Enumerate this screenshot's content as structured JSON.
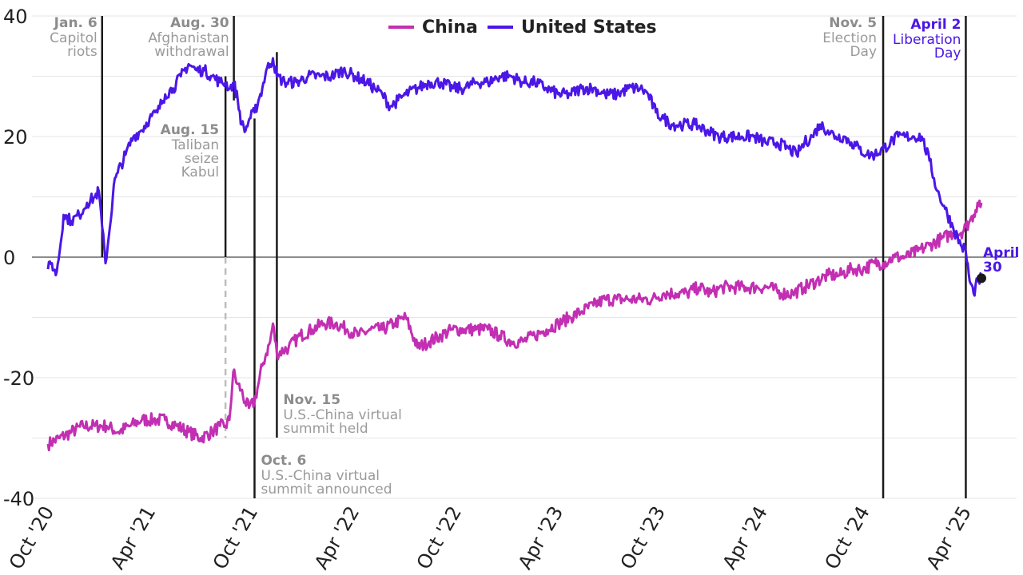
{
  "colors": {
    "china": "#c22fb2",
    "united_states": "#4b17e6",
    "event_line": "#1a1a1a",
    "grid": "#e6e6e6",
    "annotation_gray": "#9a9a9a"
  },
  "chart_data": {
    "type": "line",
    "x_axis": {
      "type": "date",
      "range": [
        "2020-10-01",
        "2025-04-30"
      ],
      "tick_labels": [
        "Oct '20",
        "Apr '21",
        "Oct '21",
        "Apr '22",
        "Oct '22",
        "Apr '23",
        "Oct '23",
        "Apr '24",
        "Oct '24",
        "Apr '25"
      ],
      "tick_dates": [
        "2020-10-01",
        "2021-04-01",
        "2021-10-01",
        "2022-04-01",
        "2022-10-01",
        "2023-04-01",
        "2023-10-01",
        "2024-04-01",
        "2024-10-01",
        "2025-04-01"
      ],
      "label_rotation": "-60deg"
    },
    "y_axis": {
      "range": [
        -40,
        40
      ],
      "ticks": [
        40,
        20,
        0,
        -20,
        -40
      ],
      "tick_labels": [
        "40",
        "20",
        "0",
        "-20",
        "-40"
      ],
      "grid": true
    },
    "legend": {
      "placement": "top-center",
      "entries": [
        "China",
        "United States"
      ]
    },
    "series": [
      {
        "name": "United States",
        "color": "#4b17e6",
        "points": [
          [
            "2020-10-01",
            -2
          ],
          [
            "2020-10-08",
            -1
          ],
          [
            "2020-10-15",
            -3
          ],
          [
            "2020-10-22",
            1
          ],
          [
            "2020-10-29",
            7
          ],
          [
            "2020-11-12",
            6
          ],
          [
            "2020-11-26",
            7
          ],
          [
            "2020-12-10",
            9
          ],
          [
            "2020-12-24",
            10
          ],
          [
            "2020-12-31",
            11
          ],
          [
            "2021-01-06",
            5
          ],
          [
            "2021-01-12",
            -1
          ],
          [
            "2021-01-20",
            5
          ],
          [
            "2021-01-27",
            12
          ],
          [
            "2021-02-03",
            14
          ],
          [
            "2021-02-17",
            17
          ],
          [
            "2021-03-03",
            20
          ],
          [
            "2021-03-17",
            21
          ],
          [
            "2021-04-01",
            23
          ],
          [
            "2021-04-15",
            24
          ],
          [
            "2021-04-29",
            27
          ],
          [
            "2021-05-13",
            28
          ],
          [
            "2021-05-27",
            30
          ],
          [
            "2021-06-10",
            32
          ],
          [
            "2021-06-24",
            31
          ],
          [
            "2021-07-08",
            31
          ],
          [
            "2021-07-22",
            30
          ],
          [
            "2021-08-05",
            29
          ],
          [
            "2021-08-15",
            29
          ],
          [
            "2021-08-23",
            28
          ],
          [
            "2021-08-30",
            29
          ],
          [
            "2021-09-06",
            26
          ],
          [
            "2021-09-13",
            22
          ],
          [
            "2021-09-20",
            21
          ],
          [
            "2021-09-27",
            23
          ],
          [
            "2021-10-06",
            24
          ],
          [
            "2021-10-13",
            26
          ],
          [
            "2021-10-20",
            28
          ],
          [
            "2021-10-27",
            31
          ],
          [
            "2021-11-03",
            32
          ],
          [
            "2021-11-08",
            33
          ],
          [
            "2021-11-15",
            30
          ],
          [
            "2021-11-29",
            29
          ],
          [
            "2021-12-20",
            29
          ],
          [
            "2022-01-10",
            30
          ],
          [
            "2022-01-31",
            30
          ],
          [
            "2022-02-21",
            30
          ],
          [
            "2022-03-14",
            31
          ],
          [
            "2022-04-04",
            30
          ],
          [
            "2022-04-25",
            29
          ],
          [
            "2022-05-09",
            28
          ],
          [
            "2022-05-23",
            27
          ],
          [
            "2022-06-06",
            25
          ],
          [
            "2022-06-20",
            26
          ],
          [
            "2022-07-04",
            27
          ],
          [
            "2022-07-25",
            28
          ],
          [
            "2022-08-15",
            29
          ],
          [
            "2022-09-05",
            29
          ],
          [
            "2022-09-26",
            28
          ],
          [
            "2022-10-17",
            28
          ],
          [
            "2022-11-07",
            29
          ],
          [
            "2022-11-28",
            29
          ],
          [
            "2022-12-19",
            30
          ],
          [
            "2023-01-09",
            30
          ],
          [
            "2023-01-30",
            29
          ],
          [
            "2023-02-20",
            29
          ],
          [
            "2023-03-13",
            28
          ],
          [
            "2023-04-03",
            27
          ],
          [
            "2023-04-24",
            27
          ],
          [
            "2023-05-15",
            28
          ],
          [
            "2023-06-05",
            28
          ],
          [
            "2023-06-26",
            27
          ],
          [
            "2023-07-17",
            27
          ],
          [
            "2023-08-07",
            28
          ],
          [
            "2023-08-28",
            28
          ],
          [
            "2023-09-11",
            27
          ],
          [
            "2023-09-25",
            24
          ],
          [
            "2023-10-09",
            23
          ],
          [
            "2023-10-23",
            22
          ],
          [
            "2023-11-13",
            22
          ],
          [
            "2023-12-04",
            22
          ],
          [
            "2023-12-25",
            21
          ],
          [
            "2024-01-15",
            20
          ],
          [
            "2024-02-05",
            20
          ],
          [
            "2024-02-26",
            20
          ],
          [
            "2024-03-18",
            20
          ],
          [
            "2024-04-08",
            19
          ],
          [
            "2024-04-29",
            19
          ],
          [
            "2024-05-20",
            18
          ],
          [
            "2024-06-03",
            17
          ],
          [
            "2024-06-17",
            19
          ],
          [
            "2024-07-01",
            20
          ],
          [
            "2024-07-15",
            22
          ],
          [
            "2024-07-29",
            21
          ],
          [
            "2024-08-12",
            20
          ],
          [
            "2024-08-26",
            20
          ],
          [
            "2024-09-09",
            19
          ],
          [
            "2024-09-23",
            18
          ],
          [
            "2024-10-07",
            17
          ],
          [
            "2024-10-21",
            17
          ],
          [
            "2024-11-05",
            18
          ],
          [
            "2024-11-18",
            19
          ],
          [
            "2024-12-02",
            20
          ],
          [
            "2024-12-16",
            20
          ],
          [
            "2024-12-30",
            20
          ],
          [
            "2025-01-13",
            20
          ],
          [
            "2025-01-27",
            16
          ],
          [
            "2025-02-10",
            11
          ],
          [
            "2025-02-24",
            8
          ],
          [
            "2025-03-10",
            5
          ],
          [
            "2025-03-24",
            2
          ],
          [
            "2025-04-02",
            1
          ],
          [
            "2025-04-09",
            -4
          ],
          [
            "2025-04-16",
            -6
          ],
          [
            "2025-04-23",
            -4
          ],
          [
            "2025-04-30",
            -3.5
          ]
        ]
      },
      {
        "name": "China",
        "color": "#c22fb2",
        "points": [
          [
            "2020-10-01",
            -31
          ],
          [
            "2020-10-22",
            -30
          ],
          [
            "2020-11-12",
            -29
          ],
          [
            "2020-12-03",
            -28
          ],
          [
            "2020-12-24",
            -28
          ],
          [
            "2021-01-14",
            -28
          ],
          [
            "2021-02-04",
            -29
          ],
          [
            "2021-02-25",
            -28
          ],
          [
            "2021-03-18",
            -27
          ],
          [
            "2021-04-08",
            -27
          ],
          [
            "2021-04-29",
            -27
          ],
          [
            "2021-05-20",
            -28
          ],
          [
            "2021-06-10",
            -29
          ],
          [
            "2021-07-01",
            -30
          ],
          [
            "2021-07-22",
            -29
          ],
          [
            "2021-08-05",
            -28
          ],
          [
            "2021-08-15",
            -28
          ],
          [
            "2021-08-22",
            -27
          ],
          [
            "2021-08-29",
            -19
          ],
          [
            "2021-09-05",
            -21
          ],
          [
            "2021-09-12",
            -22
          ],
          [
            "2021-09-19",
            -24
          ],
          [
            "2021-09-26",
            -25
          ],
          [
            "2021-10-06",
            -24
          ],
          [
            "2021-10-13",
            -21
          ],
          [
            "2021-10-20",
            -18
          ],
          [
            "2021-10-27",
            -16
          ],
          [
            "2021-11-03",
            -14
          ],
          [
            "2021-11-08",
            -11
          ],
          [
            "2021-11-15",
            -16
          ],
          [
            "2021-12-06",
            -15
          ],
          [
            "2021-12-27",
            -13
          ],
          [
            "2022-01-17",
            -12
          ],
          [
            "2022-02-07",
            -11
          ],
          [
            "2022-02-28",
            -11
          ],
          [
            "2022-03-21",
            -12
          ],
          [
            "2022-04-11",
            -13
          ],
          [
            "2022-05-02",
            -12
          ],
          [
            "2022-05-23",
            -12
          ],
          [
            "2022-06-13",
            -11
          ],
          [
            "2022-07-04",
            -10
          ],
          [
            "2022-07-25",
            -15
          ],
          [
            "2022-08-15",
            -14
          ],
          [
            "2022-09-05",
            -13
          ],
          [
            "2022-09-26",
            -12
          ],
          [
            "2022-10-17",
            -12
          ],
          [
            "2022-11-07",
            -12
          ],
          [
            "2022-11-28",
            -12
          ],
          [
            "2022-12-19",
            -13
          ],
          [
            "2023-01-09",
            -14
          ],
          [
            "2023-01-30",
            -14
          ],
          [
            "2023-02-20",
            -13
          ],
          [
            "2023-03-13",
            -12
          ],
          [
            "2023-04-03",
            -11
          ],
          [
            "2023-04-24",
            -10
          ],
          [
            "2023-05-15",
            -9
          ],
          [
            "2023-06-05",
            -8
          ],
          [
            "2023-06-26",
            -7
          ],
          [
            "2023-07-17",
            -7
          ],
          [
            "2023-08-07",
            -7
          ],
          [
            "2023-08-28",
            -7
          ],
          [
            "2023-09-18",
            -7
          ],
          [
            "2023-10-09",
            -6
          ],
          [
            "2023-10-30",
            -6
          ],
          [
            "2023-11-20",
            -6
          ],
          [
            "2023-12-11",
            -5
          ],
          [
            "2024-01-01",
            -6
          ],
          [
            "2024-01-22",
            -5
          ],
          [
            "2024-02-12",
            -5
          ],
          [
            "2024-03-04",
            -5
          ],
          [
            "2024-03-25",
            -5
          ],
          [
            "2024-04-15",
            -5
          ],
          [
            "2024-05-06",
            -6
          ],
          [
            "2024-05-27",
            -6
          ],
          [
            "2024-06-17",
            -5
          ],
          [
            "2024-07-08",
            -4
          ],
          [
            "2024-07-29",
            -3
          ],
          [
            "2024-08-19",
            -3
          ],
          [
            "2024-09-09",
            -2
          ],
          [
            "2024-09-30",
            -2
          ],
          [
            "2024-10-21",
            -1
          ],
          [
            "2024-11-05",
            -1
          ],
          [
            "2024-11-25",
            0
          ],
          [
            "2024-12-16",
            0
          ],
          [
            "2025-01-06",
            1
          ],
          [
            "2025-01-27",
            2
          ],
          [
            "2025-02-17",
            3
          ],
          [
            "2025-03-10",
            4
          ],
          [
            "2025-03-24",
            4
          ],
          [
            "2025-04-02",
            5
          ],
          [
            "2025-04-09",
            6
          ],
          [
            "2025-04-16",
            7
          ],
          [
            "2025-04-23",
            9
          ],
          [
            "2025-04-30",
            9
          ]
        ]
      }
    ],
    "events": [
      {
        "date": "2021-01-06",
        "label_date": "Jan. 6",
        "label_lines": [
          "Capitol",
          "riots"
        ],
        "color": "gray"
      },
      {
        "date": "2021-08-15",
        "label_date": "Aug. 15",
        "label_lines": [
          "Taliban",
          "seize",
          "Kabul"
        ],
        "color": "gray",
        "dashed_below": true
      },
      {
        "date": "2021-08-30",
        "label_date": "Aug. 30",
        "label_lines": [
          "Afghanistan",
          "withdrawal"
        ],
        "color": "gray"
      },
      {
        "date": "2021-10-06",
        "label_date": "Oct. 6",
        "label_lines": [
          "U.S.-China virtual",
          "summit announced"
        ],
        "color": "gray"
      },
      {
        "date": "2021-11-15",
        "label_date": "Nov. 15",
        "label_lines": [
          "U.S.-China virtual",
          "summit held"
        ],
        "color": "gray"
      },
      {
        "date": "2024-11-05",
        "label_date": "Nov. 5",
        "label_lines": [
          "Election",
          "Day"
        ],
        "color": "gray"
      },
      {
        "date": "2025-04-02",
        "label_date": "April 2",
        "label_lines": [
          "Liberation",
          "Day"
        ],
        "color": "purple"
      }
    ],
    "end_label": {
      "lines": [
        "April",
        "30"
      ],
      "series": "United States",
      "date": "2025-04-30"
    }
  }
}
